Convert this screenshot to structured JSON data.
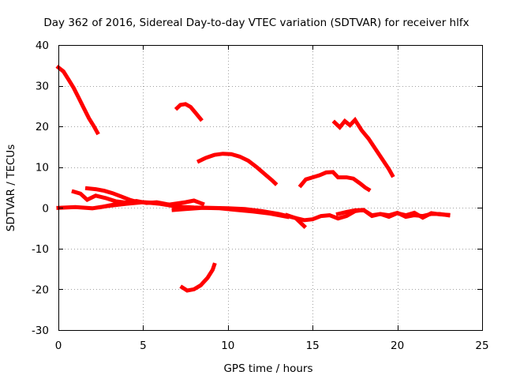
{
  "chart_data": {
    "type": "line",
    "title": "Day 362 of 2016, Sidereal Day-to-day VTEC variation (SDTVAR) for receiver hlfx",
    "xlabel": "GPS time / hours",
    "ylabel": "SDTVAR / TECUs",
    "xlim": [
      0,
      25
    ],
    "ylim": [
      -30,
      40
    ],
    "xticks": [
      0,
      5,
      10,
      15,
      20,
      25
    ],
    "yticks": [
      -30,
      -20,
      -10,
      0,
      10,
      20,
      30,
      40
    ],
    "grid": true,
    "color": "#ff0000",
    "series": [
      {
        "name": "s1",
        "x": [
          0.0,
          0.3,
          0.6,
          0.9,
          1.2,
          1.5,
          1.8,
          2.1,
          2.3
        ],
        "y": [
          34.5,
          33.5,
          31.5,
          29.5,
          27.0,
          24.5,
          22.0,
          20.0,
          18.5
        ]
      },
      {
        "name": "s2",
        "x": [
          7.0,
          7.2,
          7.5,
          7.8,
          8.1,
          8.4
        ],
        "y": [
          24.5,
          25.3,
          25.5,
          24.8,
          23.3,
          21.8
        ]
      },
      {
        "name": "s3",
        "x": [
          8.3,
          8.7,
          9.2,
          9.7,
          10.2,
          10.7,
          11.2,
          11.7,
          12.2,
          12.6,
          12.8
        ],
        "y": [
          11.5,
          12.3,
          13.0,
          13.3,
          13.2,
          12.6,
          11.6,
          10.0,
          8.2,
          6.8,
          6.0
        ]
      },
      {
        "name": "s4",
        "x": [
          14.3,
          14.6,
          15.0,
          15.4,
          15.8,
          16.2,
          16.5,
          17.0,
          17.4,
          17.8,
          18.1,
          18.3
        ],
        "y": [
          5.5,
          7.0,
          7.5,
          8.0,
          8.7,
          8.8,
          7.5,
          7.5,
          7.2,
          6.0,
          5.0,
          4.5
        ]
      },
      {
        "name": "s5",
        "x": [
          16.3,
          16.6,
          16.9,
          17.2,
          17.5,
          17.9,
          18.3,
          18.7,
          19.1,
          19.5,
          19.7
        ],
        "y": [
          21.0,
          19.8,
          21.3,
          20.3,
          21.6,
          19.0,
          17.0,
          14.5,
          12.0,
          9.5,
          8.0
        ]
      },
      {
        "name": "s6",
        "x": [
          7.3,
          7.6,
          8.0,
          8.4,
          8.8,
          9.1,
          9.2
        ],
        "y": [
          -19.5,
          -20.3,
          -20.0,
          -19.0,
          -17.2,
          -15.2,
          -14.0
        ]
      },
      {
        "name": "s7",
        "x": [
          0.9,
          1.3,
          1.7,
          2.2,
          2.8,
          3.4,
          4.0,
          4.6,
          5.2,
          5.8,
          6.4,
          7.0
        ],
        "y": [
          4.0,
          3.5,
          2.0,
          3.0,
          2.4,
          1.6,
          1.3,
          1.7,
          1.2,
          1.4,
          0.9,
          0.6
        ]
      },
      {
        "name": "s8",
        "x": [
          1.7,
          2.2,
          2.7,
          3.2,
          3.7,
          4.2,
          4.6
        ],
        "y": [
          4.8,
          4.6,
          4.2,
          3.6,
          2.8,
          2.0,
          1.5
        ]
      },
      {
        "name": "s9",
        "x": [
          0.0,
          1.0,
          2.0,
          3.0,
          4.0,
          5.0,
          6.0,
          7.0,
          8.0,
          9.0,
          10.0,
          11.0,
          12.0,
          13.0,
          14.0,
          14.5
        ],
        "y": [
          0.0,
          0.2,
          -0.1,
          0.5,
          1.0,
          1.4,
          1.0,
          0.3,
          0.1,
          0.0,
          -0.1,
          -0.3,
          -0.8,
          -1.5,
          -2.5,
          -4.5
        ]
      },
      {
        "name": "s10",
        "x": [
          2.5,
          3.5,
          4.5,
          5.5,
          6.5,
          7.5,
          8.0,
          8.5
        ],
        "y": [
          0.2,
          1.0,
          1.5,
          1.3,
          0.8,
          1.4,
          1.8,
          1.0
        ]
      },
      {
        "name": "s11",
        "x": [
          6.8,
          7.5,
          8.5,
          9.5,
          10.5,
          11.5,
          12.5,
          13.5
        ],
        "y": [
          -0.5,
          -0.3,
          0.0,
          -0.1,
          -0.5,
          -0.9,
          -1.4,
          -2.2
        ]
      },
      {
        "name": "s12",
        "x": [
          13.5,
          14.0,
          14.5,
          15.0,
          15.5,
          16.0,
          16.5,
          17.0,
          17.5,
          18.0,
          18.5,
          19.0,
          19.5,
          20.0,
          20.5,
          21.0,
          21.5,
          22.0,
          22.5,
          23.0
        ],
        "y": [
          -1.8,
          -2.5,
          -3.0,
          -2.8,
          -2.0,
          -1.8,
          -2.6,
          -2.0,
          -0.8,
          -0.5,
          -2.0,
          -1.5,
          -1.8,
          -1.2,
          -2.2,
          -1.8,
          -2.0,
          -1.5,
          -1.5,
          -1.8
        ]
      },
      {
        "name": "s13",
        "x": [
          16.5,
          17.0,
          17.5,
          18.0,
          18.5,
          19.0,
          19.5,
          20.0,
          20.5,
          21.0,
          21.5,
          22.0,
          22.5,
          23.0
        ],
        "y": [
          -1.5,
          -1.0,
          -0.6,
          -0.5,
          -1.8,
          -1.5,
          -2.2,
          -1.3,
          -1.8,
          -1.2,
          -2.4,
          -1.3,
          -1.6,
          -1.7
        ]
      }
    ]
  }
}
